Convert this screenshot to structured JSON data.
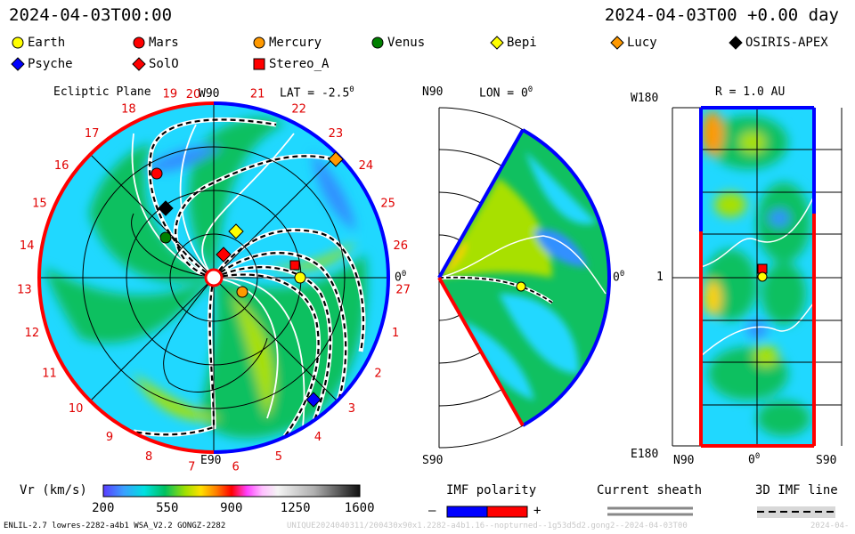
{
  "header": {
    "left_time": "2024-04-03T00:00",
    "right_time": "2024-04-03T00 +0.00 day"
  },
  "legend": [
    {
      "name": "Earth",
      "shape": "circle",
      "color": "#ffff00"
    },
    {
      "name": "Mars",
      "shape": "circle",
      "color": "#ff0000"
    },
    {
      "name": "Mercury",
      "shape": "circle",
      "color": "#ff9900"
    },
    {
      "name": "Venus",
      "shape": "circle",
      "color": "#008000"
    },
    {
      "name": "Bepi",
      "shape": "diamond",
      "color": "#ffff00"
    },
    {
      "name": "Lucy",
      "shape": "diamond",
      "color": "#ff9900"
    },
    {
      "name": "OSIRIS-APEX",
      "shape": "diamond",
      "color": "#000000"
    },
    {
      "name": "Psyche",
      "shape": "diamond",
      "color": "#0000ff"
    },
    {
      "name": "SolO",
      "shape": "diamond",
      "color": "#ff0000"
    },
    {
      "name": "Stereo_A",
      "shape": "square",
      "color": "#ff0000"
    }
  ],
  "ecliptic": {
    "title": "Ecliptic Plane",
    "top_label": "W90",
    "lat_label": "LAT = -2.5",
    "deg_sup": "0",
    "right_label": "0",
    "bottom_label": "E90",
    "hour_labels": [
      "20",
      "21",
      "22",
      "23",
      "24",
      "25",
      "26",
      "27",
      "1",
      "2",
      "3",
      "4",
      "5",
      "6",
      "7",
      "8",
      "9",
      "10",
      "11",
      "12",
      "13",
      "14",
      "15",
      "16",
      "17",
      "18",
      "19"
    ]
  },
  "meridional": {
    "top_left": "N90",
    "lon_label": "LON = 0",
    "deg_sup": "0",
    "right_label": "0",
    "bottom_left": "S90"
  },
  "radial": {
    "title": "R = 1.0 AU",
    "top_left": "W180",
    "mid_left": "1",
    "bottom_left": "E180",
    "x_left": "N90",
    "x_mid": "0",
    "x_right": "S90",
    "deg_sup": "0"
  },
  "colorbar": {
    "label": "Vr (km/s)",
    "ticks": [
      "200",
      "550",
      "900",
      "1250",
      "1600"
    ]
  },
  "imf": {
    "label": "IMF polarity",
    "minus": "–",
    "plus": "+",
    "negative_color": "#0000ff",
    "positive_color": "#ff0000"
  },
  "sheath": {
    "label": "Current sheath"
  },
  "imf3d": {
    "label": "3D IMF line"
  },
  "footer": {
    "model": "ENLIL-2.7 lowres-2282-a4b1 WSA_V2.2 GONGZ-2282",
    "run_id": "UNIQUE2024040311/200430x90x1.2282-a4b1.16--nopturned--1g53d5d2.gong2--2024-04-03T00",
    "date": "2024-04-"
  }
}
